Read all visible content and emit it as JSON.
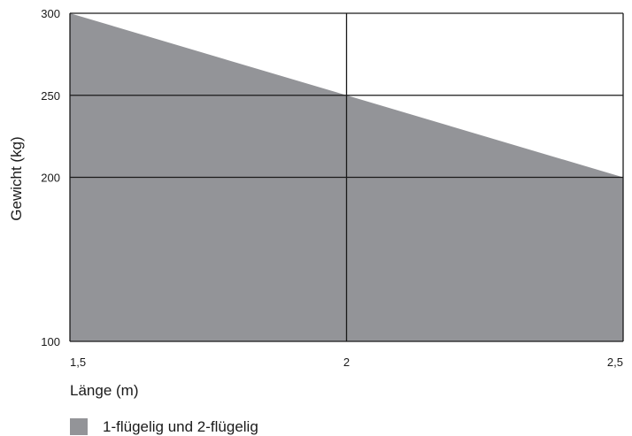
{
  "chart_data": {
    "type": "area",
    "xlabel": "Länge (m)",
    "ylabel": "Gewicht (kg)",
    "x_ticks": [
      {
        "value": 1.5,
        "label": "1,5"
      },
      {
        "value": 2,
        "label": "2"
      },
      {
        "value": 2.5,
        "label": "2,5"
      }
    ],
    "y_ticks": [
      {
        "value": 100,
        "label": "100"
      },
      {
        "value": 200,
        "label": "200"
      },
      {
        "value": 250,
        "label": "250"
      },
      {
        "value": 300,
        "label": "300"
      }
    ],
    "y_axis_segments": [
      [
        100,
        200
      ],
      [
        200,
        300
      ]
    ],
    "xlim": [
      1.5,
      2.5
    ],
    "grid": true,
    "series": [
      {
        "name": "1-flügelig und 2-flügelig",
        "color": "#939498",
        "x": [
          1.5,
          2,
          2.5
        ],
        "y": [
          300,
          250,
          200
        ]
      }
    ],
    "legend": {
      "placement": "bottom-left"
    }
  }
}
